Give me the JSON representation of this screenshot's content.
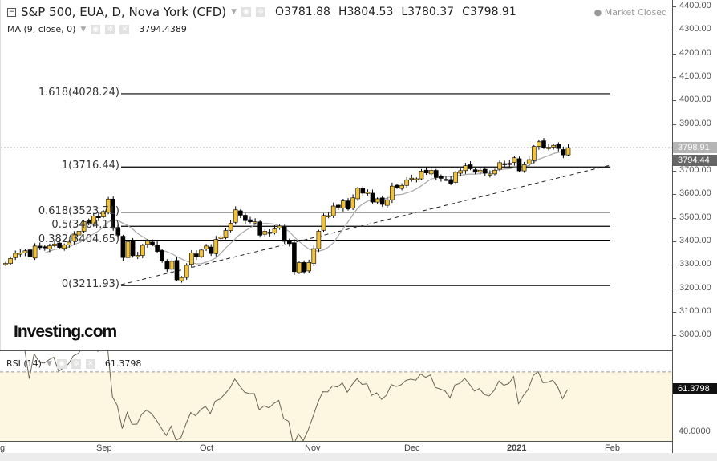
{
  "header": {
    "title": "S&P 500, EUA, D, Nova York (CFD)",
    "open": "O3781.88",
    "high": "H3804.53",
    "low": "L3780.37",
    "close": "C3798.91",
    "market_status": "Market Closed"
  },
  "ma": {
    "label": "MA (9, close, 0)",
    "value": "3794.4389"
  },
  "rsi": {
    "label": "RSI (14)",
    "value": "61.3798",
    "axis_tag": "61.3798",
    "axis_label": "40.0000"
  },
  "price_axis": {
    "labels": [
      "4400.00",
      "4300.00",
      "4200.00",
      "4100.00",
      "4000.00",
      "3900.00",
      "3700.00",
      "3600.00",
      "3500.00",
      "3400.00",
      "3300.00",
      "3200.00",
      "3100.00",
      "3000.00"
    ],
    "last_price_tag": "3798.91",
    "ma_tag": "3794.44"
  },
  "fib": [
    {
      "label": "1.618(4028.24)",
      "price": 4028.24
    },
    {
      "label": "1(3716.44)",
      "price": 3716.44
    },
    {
      "label": "0.618(3523.71)",
      "price": 3523.71
    },
    {
      "label": "0.5(3464.11)",
      "price": 3464.11
    },
    {
      "label": "0.382(3404.65)",
      "price": 3404.65
    },
    {
      "label": "0(3211.93)",
      "price": 3211.93
    }
  ],
  "time_axis": [
    "g",
    "Sep",
    "Oct",
    "Nov",
    "Dec",
    "2021",
    "Feb"
  ],
  "logo": "Investing.com",
  "colors": {
    "up": "#f0c23b",
    "down": "#000000",
    "ma": "#a8a8a8",
    "rsi_bg": "#fdf6e1"
  },
  "chart_data": {
    "type": "candlestick",
    "symbol": "S&P 500",
    "ylim": [
      2950,
      4420
    ],
    "closes": [
      3306,
      3327,
      3349,
      3351,
      3360,
      3333,
      3380,
      3373,
      3372,
      3381,
      3389,
      3374,
      3385,
      3397,
      3431,
      3443,
      3484,
      3478,
      3508,
      3500,
      3527,
      3580,
      3455,
      3426,
      3331,
      3398,
      3339,
      3340,
      3383,
      3401,
      3385,
      3357,
      3319,
      3281,
      3315,
      3236,
      3246,
      3298,
      3351,
      3335,
      3363,
      3380,
      3348,
      3408,
      3419,
      3446,
      3477,
      3534,
      3511,
      3488,
      3483,
      3483,
      3426,
      3443,
      3435,
      3453,
      3465,
      3400,
      3390,
      3271,
      3310,
      3270,
      3310,
      3369,
      3443,
      3510,
      3509,
      3550,
      3545,
      3572,
      3537,
      3585,
      3626,
      3605,
      3609,
      3567,
      3581,
      3557,
      3577,
      3635,
      3629,
      3638,
      3662,
      3669,
      3666,
      3699,
      3691,
      3702,
      3672,
      3668,
      3663,
      3647,
      3694,
      3701,
      3722,
      3709,
      3694,
      3703,
      3690,
      3687,
      3703,
      3735,
      3727,
      3732,
      3756,
      3700,
      3726,
      3748,
      3804,
      3824,
      3799,
      3801,
      3809,
      3795,
      3768,
      3798.91
    ]
  }
}
